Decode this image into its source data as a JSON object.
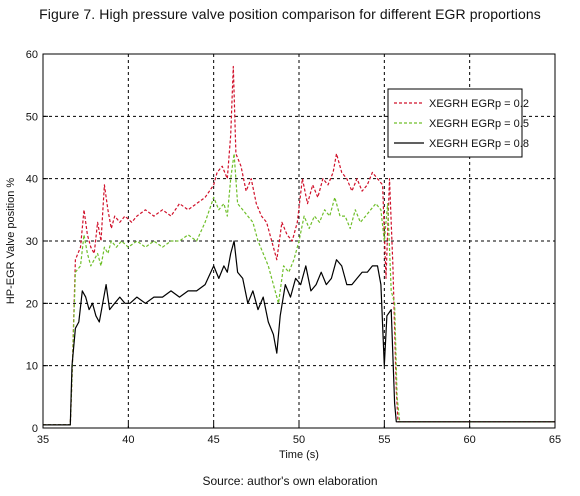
{
  "figure": {
    "title": "Figure 7. High pressure valve position comparison for different EGR proportions",
    "source": "Source: author's own elaboration"
  },
  "chart_data": {
    "type": "line",
    "xlabel": "Time (s)",
    "ylabel": "HP-EGR Valve position %",
    "xlim": [
      35,
      65
    ],
    "ylim": [
      0,
      60
    ],
    "xticks": [
      35,
      40,
      45,
      50,
      55,
      60,
      65
    ],
    "yticks": [
      0,
      10,
      20,
      30,
      40,
      50,
      60
    ],
    "grid": true,
    "legend_position": "top-right",
    "series": [
      {
        "name": "XEGRH EGRp = 0.2",
        "color": "#d0102a",
        "dash": "dashed",
        "points": [
          [
            35,
            0.5
          ],
          [
            36.6,
            0.5
          ],
          [
            36.7,
            8
          ],
          [
            36.9,
            27
          ],
          [
            37.2,
            29
          ],
          [
            37.4,
            35
          ],
          [
            37.6,
            31
          ],
          [
            37.8,
            29
          ],
          [
            38.0,
            28
          ],
          [
            38.2,
            33
          ],
          [
            38.4,
            30
          ],
          [
            38.6,
            39
          ],
          [
            38.8,
            35
          ],
          [
            39.0,
            32
          ],
          [
            39.2,
            34
          ],
          [
            39.5,
            33
          ],
          [
            39.8,
            34
          ],
          [
            40.2,
            33
          ],
          [
            40.5,
            34
          ],
          [
            41.0,
            35
          ],
          [
            41.5,
            34
          ],
          [
            42.0,
            35
          ],
          [
            42.5,
            34
          ],
          [
            43.0,
            36
          ],
          [
            43.5,
            35
          ],
          [
            44.0,
            36
          ],
          [
            44.5,
            37
          ],
          [
            45.0,
            39
          ],
          [
            45.2,
            41
          ],
          [
            45.5,
            42
          ],
          [
            45.8,
            40
          ],
          [
            46.0,
            47
          ],
          [
            46.15,
            58
          ],
          [
            46.3,
            44
          ],
          [
            46.6,
            42
          ],
          [
            46.9,
            38
          ],
          [
            47.2,
            40
          ],
          [
            47.5,
            36
          ],
          [
            47.8,
            34
          ],
          [
            48.1,
            33
          ],
          [
            48.4,
            30
          ],
          [
            48.7,
            27
          ],
          [
            49.0,
            33
          ],
          [
            49.3,
            31
          ],
          [
            49.6,
            30
          ],
          [
            49.9,
            33
          ],
          [
            50.2,
            40
          ],
          [
            50.5,
            36
          ],
          [
            50.8,
            39
          ],
          [
            51.1,
            37
          ],
          [
            51.4,
            40
          ],
          [
            51.7,
            39
          ],
          [
            52.0,
            41
          ],
          [
            52.2,
            44
          ],
          [
            52.5,
            41
          ],
          [
            52.8,
            40
          ],
          [
            53.1,
            38
          ],
          [
            53.4,
            40
          ],
          [
            53.7,
            38
          ],
          [
            54.0,
            39
          ],
          [
            54.3,
            41
          ],
          [
            54.6,
            40
          ],
          [
            54.9,
            39
          ],
          [
            55.1,
            24
          ],
          [
            55.3,
            40
          ],
          [
            55.5,
            26
          ],
          [
            55.7,
            6
          ],
          [
            55.8,
            1
          ],
          [
            65,
            1
          ]
        ]
      },
      {
        "name": "XEGRH EGRp = 0.5",
        "color": "#6fbf2a",
        "dash": "dashed",
        "points": [
          [
            35,
            0.5
          ],
          [
            36.6,
            0.5
          ],
          [
            36.7,
            8
          ],
          [
            36.9,
            25
          ],
          [
            37.2,
            26
          ],
          [
            37.4,
            31
          ],
          [
            37.6,
            28
          ],
          [
            37.8,
            26
          ],
          [
            38.0,
            27
          ],
          [
            38.2,
            28
          ],
          [
            38.4,
            26
          ],
          [
            38.6,
            29
          ],
          [
            38.8,
            28
          ],
          [
            39.0,
            30
          ],
          [
            39.3,
            29
          ],
          [
            39.6,
            30
          ],
          [
            40.0,
            29
          ],
          [
            40.5,
            30
          ],
          [
            41.0,
            29
          ],
          [
            41.5,
            30
          ],
          [
            42.0,
            29
          ],
          [
            42.5,
            30
          ],
          [
            43.0,
            30
          ],
          [
            43.5,
            31
          ],
          [
            44.0,
            30
          ],
          [
            44.5,
            33
          ],
          [
            45.0,
            37
          ],
          [
            45.3,
            35
          ],
          [
            45.6,
            36
          ],
          [
            45.8,
            34
          ],
          [
            46.0,
            40
          ],
          [
            46.2,
            44
          ],
          [
            46.4,
            36
          ],
          [
            46.7,
            35
          ],
          [
            47.0,
            34
          ],
          [
            47.3,
            33
          ],
          [
            47.6,
            30
          ],
          [
            47.9,
            28
          ],
          [
            48.2,
            26
          ],
          [
            48.5,
            23
          ],
          [
            48.8,
            20
          ],
          [
            49.1,
            26
          ],
          [
            49.4,
            25
          ],
          [
            49.7,
            27
          ],
          [
            50.0,
            30
          ],
          [
            50.3,
            34
          ],
          [
            50.6,
            32
          ],
          [
            50.9,
            34
          ],
          [
            51.2,
            33
          ],
          [
            51.5,
            35
          ],
          [
            51.8,
            34
          ],
          [
            52.1,
            37
          ],
          [
            52.4,
            34
          ],
          [
            52.7,
            34
          ],
          [
            53.0,
            32
          ],
          [
            53.3,
            35
          ],
          [
            53.6,
            33
          ],
          [
            53.9,
            34
          ],
          [
            54.2,
            35
          ],
          [
            54.5,
            36
          ],
          [
            54.8,
            35
          ],
          [
            55.0,
            30
          ],
          [
            55.2,
            36
          ],
          [
            55.4,
            22
          ],
          [
            55.6,
            20
          ],
          [
            55.75,
            5
          ],
          [
            55.9,
            1
          ],
          [
            65,
            1
          ]
        ]
      },
      {
        "name": "XEGRH EGRp = 0.8",
        "color": "#000000",
        "dash": "solid",
        "points": [
          [
            35,
            0.5
          ],
          [
            36.6,
            0.5
          ],
          [
            36.7,
            10
          ],
          [
            36.9,
            16
          ],
          [
            37.1,
            17
          ],
          [
            37.3,
            22
          ],
          [
            37.5,
            21
          ],
          [
            37.7,
            19
          ],
          [
            37.9,
            20
          ],
          [
            38.1,
            18
          ],
          [
            38.3,
            17
          ],
          [
            38.5,
            20
          ],
          [
            38.7,
            23
          ],
          [
            38.9,
            19
          ],
          [
            39.2,
            20
          ],
          [
            39.5,
            21
          ],
          [
            39.8,
            20
          ],
          [
            40.1,
            20
          ],
          [
            40.5,
            21
          ],
          [
            41.0,
            20
          ],
          [
            41.5,
            21
          ],
          [
            42.0,
            21
          ],
          [
            42.5,
            22
          ],
          [
            43.0,
            21
          ],
          [
            43.5,
            22
          ],
          [
            44.0,
            22
          ],
          [
            44.5,
            23
          ],
          [
            45.0,
            26
          ],
          [
            45.3,
            24
          ],
          [
            45.6,
            26
          ],
          [
            45.8,
            25
          ],
          [
            46.0,
            28
          ],
          [
            46.2,
            30
          ],
          [
            46.4,
            25
          ],
          [
            46.7,
            24
          ],
          [
            47.0,
            20
          ],
          [
            47.3,
            22
          ],
          [
            47.6,
            19
          ],
          [
            47.9,
            21
          ],
          [
            48.2,
            17
          ],
          [
            48.5,
            15
          ],
          [
            48.7,
            12
          ],
          [
            48.9,
            18
          ],
          [
            49.2,
            23
          ],
          [
            49.5,
            21
          ],
          [
            49.8,
            24
          ],
          [
            50.1,
            23
          ],
          [
            50.4,
            26
          ],
          [
            50.7,
            22
          ],
          [
            51.0,
            23
          ],
          [
            51.3,
            25
          ],
          [
            51.6,
            23
          ],
          [
            51.9,
            24
          ],
          [
            52.2,
            27
          ],
          [
            52.5,
            26
          ],
          [
            52.8,
            23
          ],
          [
            53.1,
            23
          ],
          [
            53.4,
            24
          ],
          [
            53.7,
            25
          ],
          [
            54.0,
            25
          ],
          [
            54.3,
            26
          ],
          [
            54.6,
            26
          ],
          [
            54.8,
            23
          ],
          [
            55.0,
            10
          ],
          [
            55.15,
            18
          ],
          [
            55.4,
            19
          ],
          [
            55.6,
            4
          ],
          [
            55.7,
            1
          ],
          [
            65,
            1
          ]
        ]
      }
    ]
  }
}
